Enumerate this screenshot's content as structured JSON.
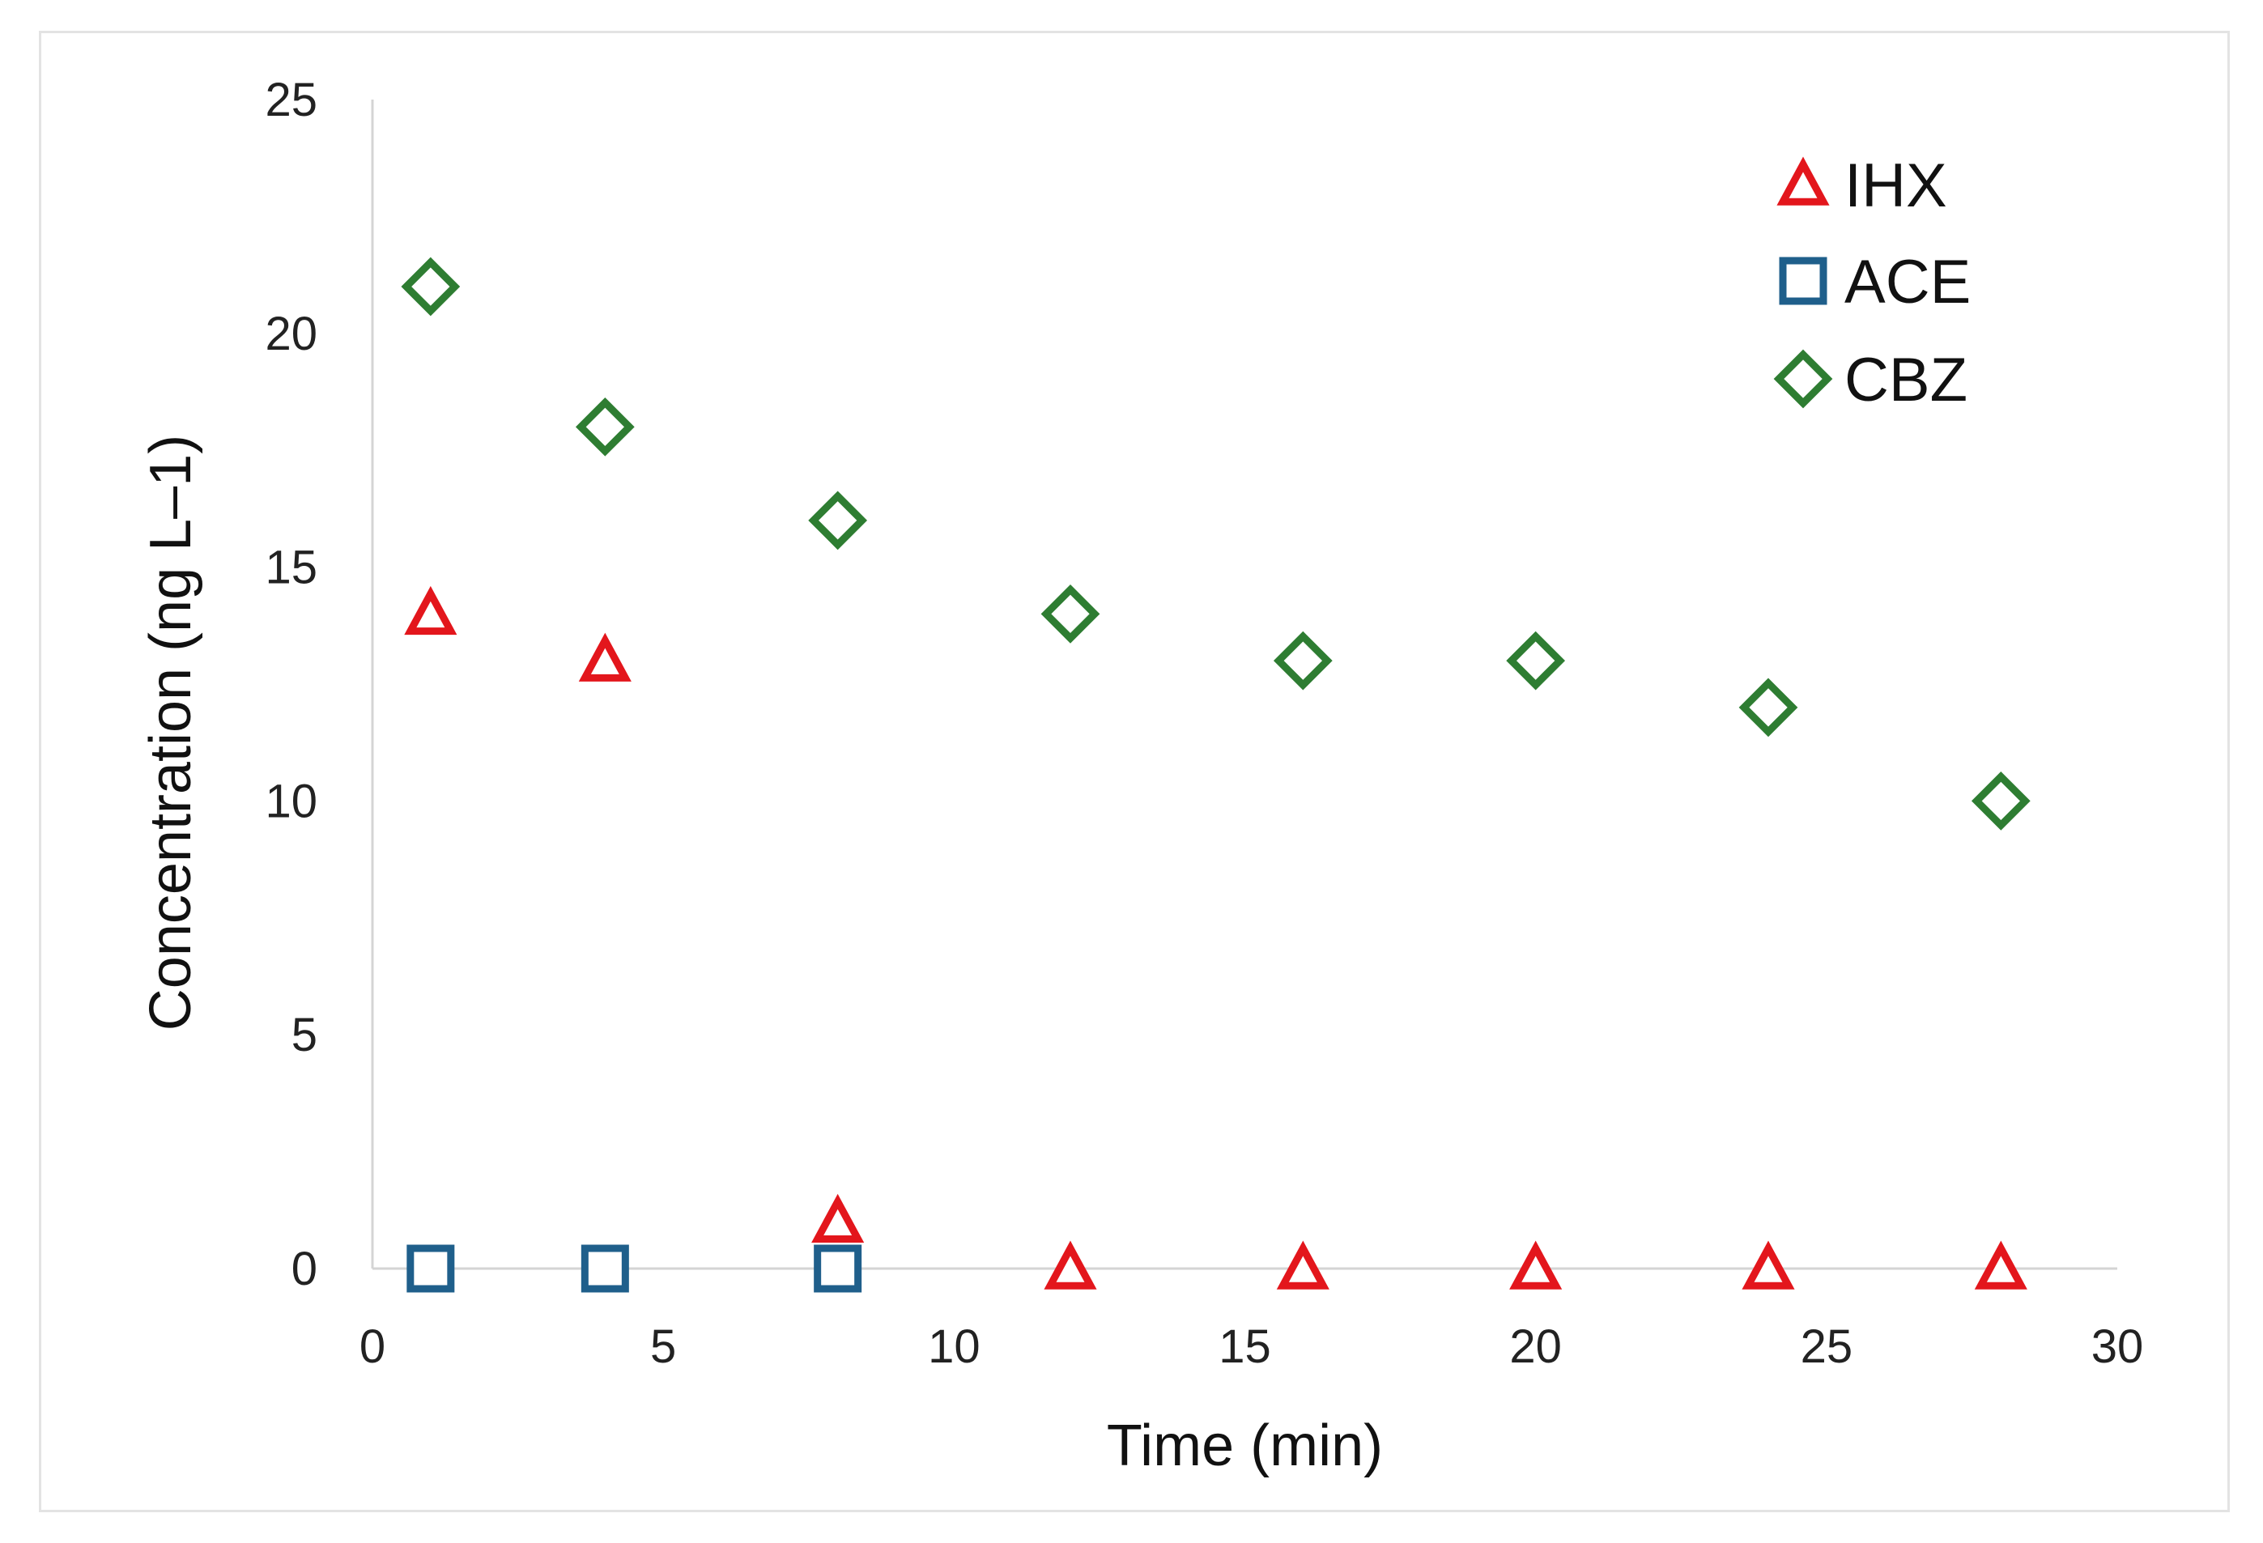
{
  "chart_data": {
    "type": "scatter",
    "title": "",
    "xlabel": "Time (min)",
    "ylabel": "Concentration (ng L–1)",
    "xlim": [
      0,
      30
    ],
    "ylim": [
      0,
      25
    ],
    "xticks": [
      0,
      5,
      10,
      15,
      20,
      25,
      30
    ],
    "yticks": [
      0,
      5,
      10,
      15,
      20,
      25
    ],
    "grid": false,
    "legend_position": "top-right",
    "series": [
      {
        "name": "IHX",
        "marker": "triangle",
        "color": "#e3161c",
        "points": [
          {
            "x": 1,
            "y": 14
          },
          {
            "x": 4,
            "y": 13
          },
          {
            "x": 8,
            "y": 1
          },
          {
            "x": 12,
            "y": 0
          },
          {
            "x": 16,
            "y": 0
          },
          {
            "x": 20,
            "y": 0
          },
          {
            "x": 24,
            "y": 0
          },
          {
            "x": 28,
            "y": 0
          }
        ]
      },
      {
        "name": "ACE",
        "marker": "square",
        "color": "#1f5f8b",
        "points": [
          {
            "x": 1,
            "y": 0
          },
          {
            "x": 4,
            "y": 0
          },
          {
            "x": 8,
            "y": 0
          }
        ]
      },
      {
        "name": "CBZ",
        "marker": "diamond",
        "color": "#2e7d32",
        "points": [
          {
            "x": 1,
            "y": 21
          },
          {
            "x": 4,
            "y": 18
          },
          {
            "x": 8,
            "y": 16
          },
          {
            "x": 12,
            "y": 14
          },
          {
            "x": 16,
            "y": 13
          },
          {
            "x": 20,
            "y": 13
          },
          {
            "x": 24,
            "y": 12
          },
          {
            "x": 28,
            "y": 10
          }
        ]
      }
    ]
  }
}
